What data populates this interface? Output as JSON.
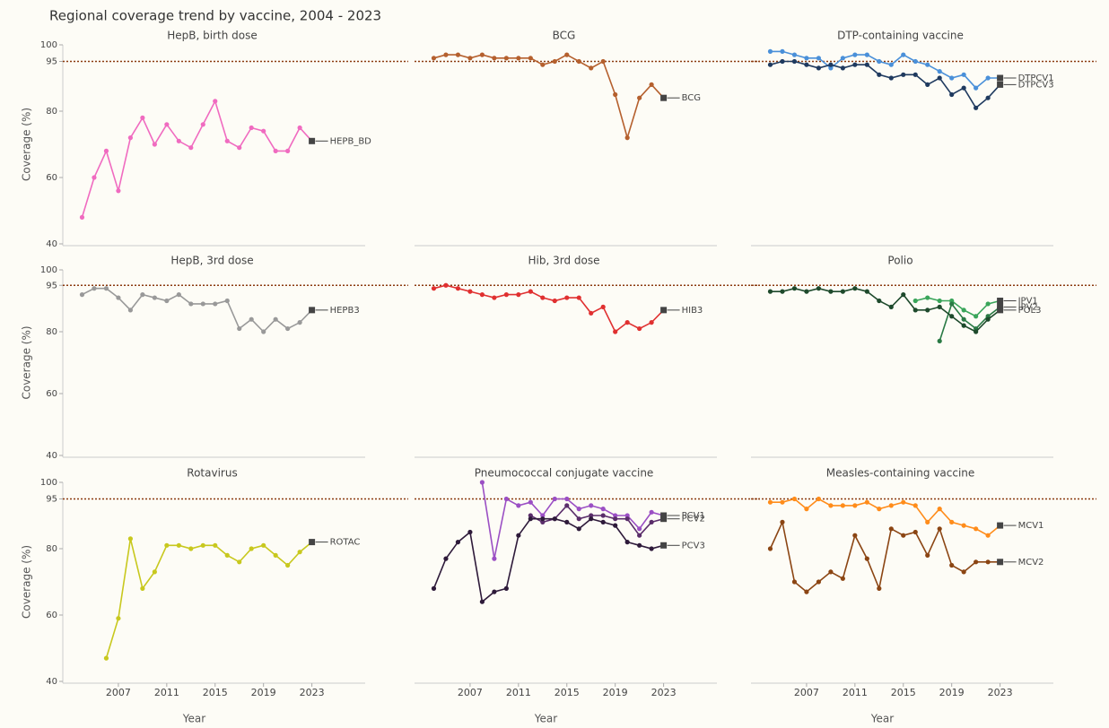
{
  "title": "Regional coverage trend by vaccine, 2004 - 2023",
  "chart_data": [
    {
      "type": "line",
      "title": "HepB, birth dose",
      "ylabel": "Coverage (%)",
      "x": [
        2004,
        2005,
        2006,
        2007,
        2008,
        2009,
        2010,
        2011,
        2012,
        2013,
        2014,
        2015,
        2016,
        2017,
        2018,
        2019,
        2020,
        2021,
        2022,
        2023
      ],
      "xlim": [
        2003,
        2028
      ],
      "ylim": [
        40,
        100
      ],
      "yticks": [
        40,
        60,
        80,
        95,
        100
      ],
      "reference": 95,
      "series": [
        {
          "name": "HEPB_BD",
          "color": "#f06bc0",
          "values": [
            48,
            60,
            68,
            56,
            72,
            78,
            70,
            76,
            71,
            69,
            76,
            83,
            71,
            69,
            75,
            74,
            68,
            68,
            75,
            71
          ]
        }
      ]
    },
    {
      "type": "line",
      "title": "BCG",
      "x": [
        2004,
        2005,
        2006,
        2007,
        2008,
        2009,
        2010,
        2011,
        2012,
        2013,
        2014,
        2015,
        2016,
        2017,
        2018,
        2019,
        2020,
        2021,
        2022,
        2023
      ],
      "xlim": [
        2003,
        2028
      ],
      "ylim": [
        40,
        100
      ],
      "reference": 95,
      "series": [
        {
          "name": "BCG",
          "color": "#b5602e",
          "values": [
            96,
            97,
            97,
            96,
            97,
            96,
            96,
            96,
            96,
            94,
            95,
            97,
            95,
            93,
            95,
            85,
            72,
            84,
            88,
            84
          ]
        }
      ]
    },
    {
      "type": "line",
      "title": "DTP-containing vaccine",
      "x": [
        2004,
        2005,
        2006,
        2007,
        2008,
        2009,
        2010,
        2011,
        2012,
        2013,
        2014,
        2015,
        2016,
        2017,
        2018,
        2019,
        2020,
        2021,
        2022,
        2023
      ],
      "xlim": [
        2003,
        2028
      ],
      "ylim": [
        40,
        100
      ],
      "reference": 95,
      "series": [
        {
          "name": "DTPCV1",
          "color": "#4a90d9",
          "values": [
            98,
            98,
            97,
            96,
            96,
            93,
            96,
            97,
            97,
            95,
            94,
            97,
            95,
            94,
            92,
            90,
            91,
            87,
            90,
            90
          ]
        },
        {
          "name": "DTPCV3",
          "color": "#1f3a5f",
          "values": [
            94,
            95,
            95,
            94,
            93,
            94,
            93,
            94,
            94,
            91,
            90,
            91,
            91,
            88,
            90,
            85,
            87,
            81,
            84,
            88
          ]
        }
      ]
    },
    {
      "type": "line",
      "title": "HepB, 3rd dose",
      "ylabel": "Coverage (%)",
      "x": [
        2004,
        2005,
        2006,
        2007,
        2008,
        2009,
        2010,
        2011,
        2012,
        2013,
        2014,
        2015,
        2016,
        2017,
        2018,
        2019,
        2020,
        2021,
        2022,
        2023
      ],
      "xlim": [
        2003,
        2028
      ],
      "ylim": [
        40,
        100
      ],
      "yticks": [
        40,
        60,
        80,
        95,
        100
      ],
      "reference": 95,
      "series": [
        {
          "name": "HEPB3",
          "color": "#999999",
          "values": [
            92,
            94,
            94,
            91,
            87,
            92,
            91,
            90,
            92,
            89,
            89,
            89,
            90,
            81,
            84,
            80,
            84,
            81,
            83,
            87
          ]
        }
      ]
    },
    {
      "type": "line",
      "title": "Hib, 3rd dose",
      "x": [
        2004,
        2005,
        2006,
        2007,
        2008,
        2009,
        2010,
        2011,
        2012,
        2013,
        2014,
        2015,
        2016,
        2017,
        2018,
        2019,
        2020,
        2021,
        2022,
        2023
      ],
      "xlim": [
        2003,
        2028
      ],
      "ylim": [
        40,
        100
      ],
      "reference": 95,
      "series": [
        {
          "name": "HIB3",
          "color": "#e03030",
          "values": [
            94,
            95,
            94,
            93,
            92,
            91,
            92,
            92,
            93,
            91,
            90,
            91,
            91,
            86,
            88,
            80,
            83,
            81,
            83,
            87
          ]
        }
      ]
    },
    {
      "type": "line",
      "title": "Polio",
      "x": [
        2004,
        2005,
        2006,
        2007,
        2008,
        2009,
        2010,
        2011,
        2012,
        2013,
        2014,
        2015,
        2016,
        2017,
        2018,
        2019,
        2020,
        2021,
        2022,
        2023
      ],
      "xlim": [
        2003,
        2028
      ],
      "ylim": [
        40,
        100
      ],
      "reference": 95,
      "series": [
        {
          "name": "IPV1",
          "color": "#3aa55a",
          "values": [
            null,
            null,
            null,
            null,
            null,
            null,
            null,
            null,
            null,
            null,
            null,
            null,
            90,
            91,
            90,
            90,
            87,
            85,
            89,
            90
          ]
        },
        {
          "name": "IPV2",
          "color": "#2a7a45",
          "values": [
            null,
            null,
            null,
            null,
            null,
            null,
            null,
            null,
            null,
            null,
            null,
            null,
            null,
            null,
            77,
            89,
            84,
            81,
            85,
            88
          ]
        },
        {
          "name": "POL3",
          "color": "#1e4a2c",
          "values": [
            93,
            93,
            94,
            93,
            94,
            93,
            93,
            94,
            93,
            90,
            88,
            92,
            87,
            87,
            88,
            85,
            82,
            80,
            84,
            87
          ]
        }
      ]
    },
    {
      "type": "line",
      "title": "Rotavirus",
      "ylabel": "Coverage (%)",
      "xlabel": "Year",
      "x": [
        2004,
        2005,
        2006,
        2007,
        2008,
        2009,
        2010,
        2011,
        2012,
        2013,
        2014,
        2015,
        2016,
        2017,
        2018,
        2019,
        2020,
        2021,
        2022,
        2023
      ],
      "xlim": [
        2003,
        2028
      ],
      "ylim": [
        40,
        100
      ],
      "yticks": [
        40,
        60,
        80,
        95,
        100
      ],
      "xticks": [
        2007,
        2011,
        2015,
        2019,
        2023
      ],
      "reference": 95,
      "series": [
        {
          "name": "ROTAC",
          "color": "#c8c81e",
          "values": [
            null,
            null,
            47,
            59,
            83,
            68,
            73,
            81,
            81,
            80,
            81,
            81,
            78,
            76,
            80,
            81,
            78,
            75,
            79,
            82
          ]
        }
      ]
    },
    {
      "type": "line",
      "title": "Pneumococcal conjugate vaccine",
      "xlabel": "Year",
      "x": [
        2004,
        2005,
        2006,
        2007,
        2008,
        2009,
        2010,
        2011,
        2012,
        2013,
        2014,
        2015,
        2016,
        2017,
        2018,
        2019,
        2020,
        2021,
        2022,
        2023
      ],
      "xlim": [
        2003,
        2028
      ],
      "ylim": [
        40,
        100
      ],
      "xticks": [
        2007,
        2011,
        2015,
        2019,
        2023
      ],
      "reference": 95,
      "series": [
        {
          "name": "PCV1",
          "color": "#9b4fc4",
          "values": [
            null,
            null,
            null,
            null,
            100,
            77,
            95,
            93,
            94,
            90,
            95,
            95,
            92,
            93,
            92,
            90,
            90,
            86,
            91,
            90
          ]
        },
        {
          "name": "PCV2",
          "color": "#5a2d6a",
          "values": [
            null,
            null,
            null,
            null,
            null,
            null,
            null,
            null,
            90,
            88,
            89,
            93,
            89,
            90,
            90,
            89,
            89,
            84,
            88,
            89
          ]
        },
        {
          "name": "PCV3",
          "color": "#2e1a3a",
          "values": [
            68,
            77,
            82,
            85,
            64,
            67,
            68,
            84,
            89,
            89,
            89,
            88,
            86,
            89,
            88,
            87,
            82,
            81,
            80,
            81
          ]
        }
      ]
    },
    {
      "type": "line",
      "title": "Measles-containing vaccine",
      "xlabel": "Year",
      "x": [
        2004,
        2005,
        2006,
        2007,
        2008,
        2009,
        2010,
        2011,
        2012,
        2013,
        2014,
        2015,
        2016,
        2017,
        2018,
        2019,
        2020,
        2021,
        2022,
        2023
      ],
      "xlim": [
        2003,
        2028
      ],
      "ylim": [
        40,
        100
      ],
      "xticks": [
        2007,
        2011,
        2015,
        2019,
        2023
      ],
      "reference": 95,
      "series": [
        {
          "name": "MCV1",
          "color": "#ff8c1a",
          "values": [
            94,
            94,
            95,
            92,
            95,
            93,
            93,
            93,
            94,
            92,
            93,
            94,
            93,
            88,
            92,
            88,
            87,
            86,
            84,
            87
          ]
        },
        {
          "name": "MCV2",
          "color": "#8b4513",
          "values": [
            80,
            88,
            70,
            67,
            70,
            73,
            71,
            84,
            77,
            68,
            86,
            84,
            85,
            78,
            86,
            75,
            73,
            76,
            76,
            76
          ]
        }
      ]
    }
  ]
}
